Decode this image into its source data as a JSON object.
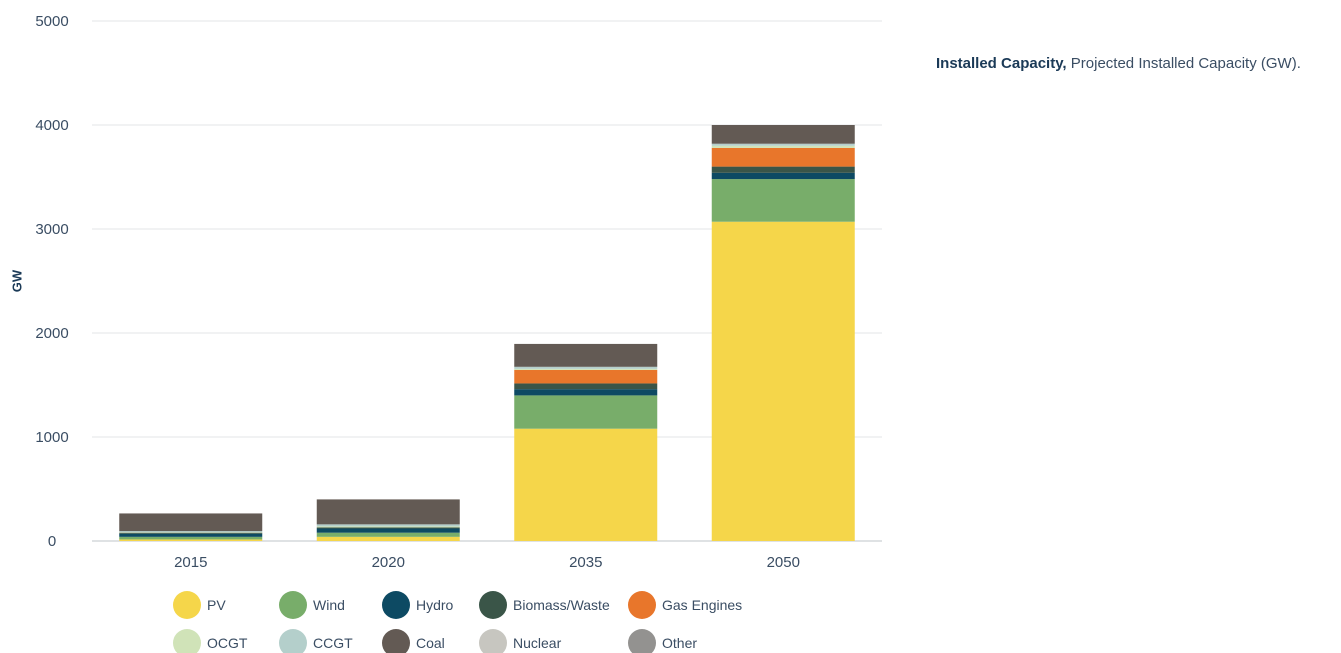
{
  "caption": {
    "title": "Installed Capacity,",
    "text": "Projected Installed Capacity (GW)."
  },
  "chart_data": {
    "type": "bar",
    "stacked": true,
    "ylabel": "GW",
    "ylim": [
      0,
      5000
    ],
    "yticks": [
      0,
      1000,
      2000,
      3000,
      4000,
      5000
    ],
    "categories": [
      "2015",
      "2020",
      "2035",
      "2050"
    ],
    "grid": true,
    "legend_position": "bottom",
    "series": [
      {
        "name": "PV",
        "color": "#f5d64a",
        "values": [
          15,
          40,
          1080,
          3070
        ]
      },
      {
        "name": "Wind",
        "color": "#78ad6a",
        "values": [
          25,
          40,
          320,
          410
        ]
      },
      {
        "name": "Hydro",
        "color": "#0d4a63",
        "values": [
          30,
          40,
          60,
          60
        ]
      },
      {
        "name": "Biomass/Waste",
        "color": "#3a5548",
        "values": [
          10,
          10,
          55,
          60
        ]
      },
      {
        "name": "Gas Engines",
        "color": "#e8762b",
        "values": [
          0,
          0,
          130,
          180
        ]
      },
      {
        "name": "OCGT",
        "color": "#d0e3b8",
        "values": [
          5,
          10,
          10,
          20
        ]
      },
      {
        "name": "CCGT",
        "color": "#b4cfcb",
        "values": [
          10,
          20,
          20,
          20
        ]
      },
      {
        "name": "Coal",
        "color": "#635a54",
        "values": [
          170,
          240,
          220,
          180
        ]
      },
      {
        "name": "Nuclear",
        "color": "#c7c6c0",
        "values": [
          0,
          0,
          0,
          0
        ]
      },
      {
        "name": "Other",
        "color": "#939290",
        "values": [
          0,
          0,
          0,
          0
        ]
      }
    ]
  }
}
